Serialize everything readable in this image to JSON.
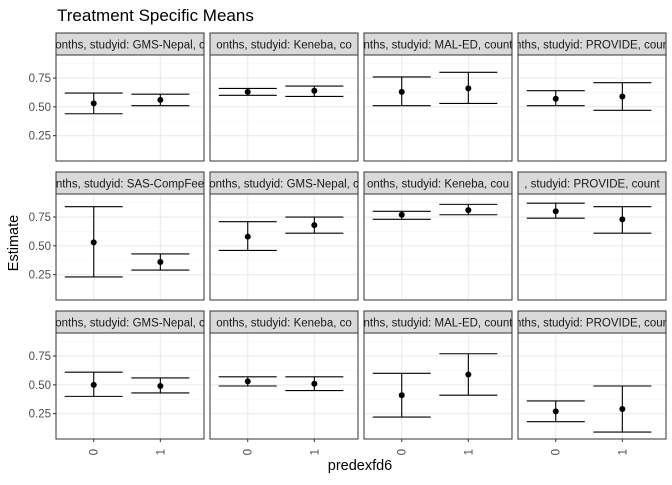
{
  "chart_data": {
    "type": "errorbar",
    "title": "Treatment Specific Means",
    "xlabel": "predexfd6",
    "ylabel": "Estimate",
    "ylim": [
      0.03,
      0.95
    ],
    "yticks": [
      0.25,
      0.5,
      0.75
    ],
    "ytick_labels": [
      "0.25",
      "0.50",
      "0.75"
    ],
    "categories": [
      "0",
      "1"
    ],
    "grid": true,
    "legend": "none",
    "colors": {
      "panel_border": "#333333",
      "strip_fill": "#d9d9d9",
      "grid": "#ebebeb",
      "mark": "#000000",
      "text": "#4d4d4d",
      "title": "#000000"
    },
    "panels": [
      {
        "strip": "onths, studyid: GMS-Nepal, c",
        "points": [
          {
            "x": "0",
            "y": 0.53,
            "lo": 0.44,
            "hi": 0.62
          },
          {
            "x": "1",
            "y": 0.56,
            "lo": 0.51,
            "hi": 0.61
          }
        ]
      },
      {
        "strip": "onths, studyid: Keneba, co",
        "points": [
          {
            "x": "0",
            "y": 0.63,
            "lo": 0.6,
            "hi": 0.66
          },
          {
            "x": "1",
            "y": 0.64,
            "lo": 0.59,
            "hi": 0.68
          }
        ]
      },
      {
        "strip": "nths, studyid: MAL-ED, count",
        "points": [
          {
            "x": "0",
            "y": 0.63,
            "lo": 0.51,
            "hi": 0.76
          },
          {
            "x": "1",
            "y": 0.66,
            "lo": 0.53,
            "hi": 0.8
          }
        ]
      },
      {
        "strip": "nths, studyid: PROVIDE, coun",
        "points": [
          {
            "x": "0",
            "y": 0.57,
            "lo": 0.51,
            "hi": 0.64
          },
          {
            "x": "1",
            "y": 0.59,
            "lo": 0.47,
            "hi": 0.71
          }
        ]
      },
      {
        "strip": "nths, studyid: SAS-CompFee",
        "points": [
          {
            "x": "0",
            "y": 0.53,
            "lo": 0.23,
            "hi": 0.84
          },
          {
            "x": "1",
            "y": 0.36,
            "lo": 0.29,
            "hi": 0.43
          }
        ]
      },
      {
        "strip": "onths, studyid: GMS-Nepal, c",
        "points": [
          {
            "x": "0",
            "y": 0.58,
            "lo": 0.46,
            "hi": 0.71
          },
          {
            "x": "1",
            "y": 0.68,
            "lo": 0.61,
            "hi": 0.75
          }
        ]
      },
      {
        "strip": "onths, studyid: Keneba, cou",
        "points": [
          {
            "x": "0",
            "y": 0.77,
            "lo": 0.73,
            "hi": 0.8
          },
          {
            "x": "1",
            "y": 0.81,
            "lo": 0.77,
            "hi": 0.86
          }
        ]
      },
      {
        "strip": ", studyid: PROVIDE, count",
        "points": [
          {
            "x": "0",
            "y": 0.8,
            "lo": 0.74,
            "hi": 0.87
          },
          {
            "x": "1",
            "y": 0.73,
            "lo": 0.61,
            "hi": 0.84
          }
        ]
      },
      {
        "strip": "onths, studyid: GMS-Nepal, c",
        "points": [
          {
            "x": "0",
            "y": 0.5,
            "lo": 0.4,
            "hi": 0.61
          },
          {
            "x": "1",
            "y": 0.49,
            "lo": 0.43,
            "hi": 0.56
          }
        ]
      },
      {
        "strip": "onths, studyid: Keneba, co",
        "points": [
          {
            "x": "0",
            "y": 0.53,
            "lo": 0.49,
            "hi": 0.57
          },
          {
            "x": "1",
            "y": 0.51,
            "lo": 0.45,
            "hi": 0.57
          }
        ]
      },
      {
        "strip": "nths, studyid: MAL-ED, count",
        "points": [
          {
            "x": "0",
            "y": 0.41,
            "lo": 0.22,
            "hi": 0.6
          },
          {
            "x": "1",
            "y": 0.59,
            "lo": 0.41,
            "hi": 0.77
          }
        ]
      },
      {
        "strip": "nths, studyid: PROVIDE, coun",
        "points": [
          {
            "x": "0",
            "y": 0.27,
            "lo": 0.18,
            "hi": 0.36
          },
          {
            "x": "1",
            "y": 0.29,
            "lo": 0.09,
            "hi": 0.49
          }
        ]
      }
    ]
  }
}
